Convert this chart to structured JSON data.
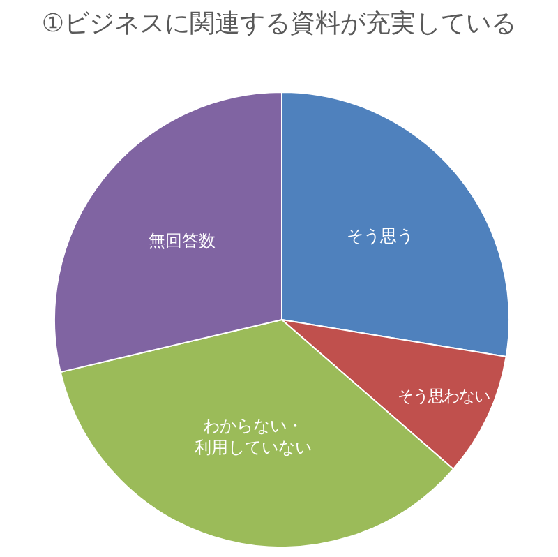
{
  "chart_data": {
    "type": "pie",
    "title": "①ビジネスに関連する資料が充実している",
    "categories": [
      "そう思う",
      "そう思わない",
      "わからない・利用していない",
      "無回答数"
    ],
    "values": [
      27.6,
      8.8,
      34.9,
      28.7
    ],
    "colors": [
      "#4f81bd",
      "#c0504d",
      "#9bbb59",
      "#8064a2"
    ],
    "legend": false
  }
}
